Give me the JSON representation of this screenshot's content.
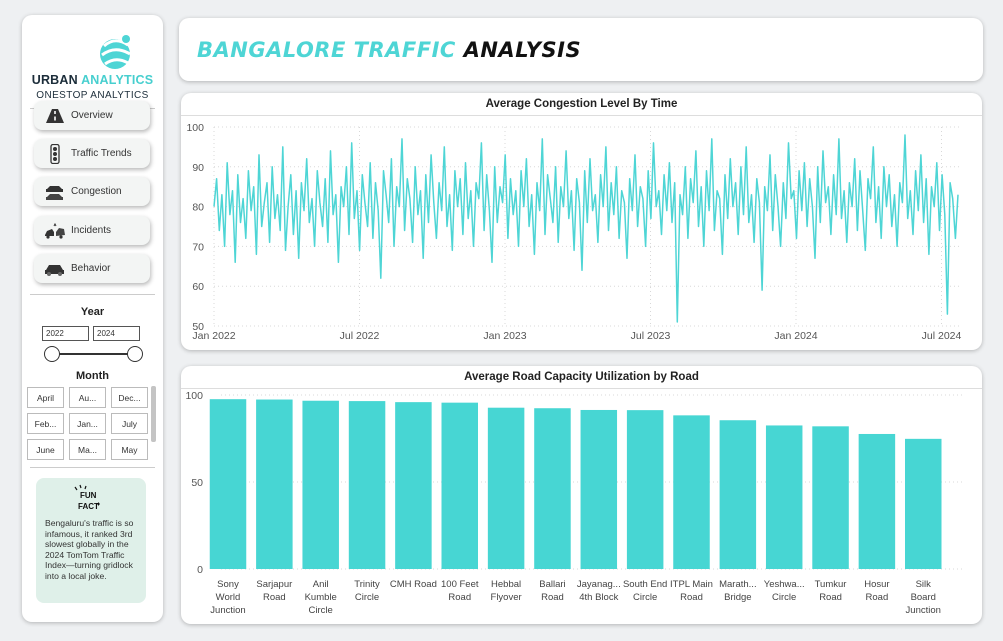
{
  "sidebar": {
    "brand_part1": "URBAN ",
    "brand_part2": "ANALYTICS",
    "brand_sub": "ONESTOP ANALYTICS",
    "nav": [
      {
        "label": "Overview",
        "icon": "road-icon"
      },
      {
        "label": "Traffic Trends",
        "icon": "traffic-light-icon"
      },
      {
        "label": "Congestion",
        "icon": "car-stack-icon"
      },
      {
        "label": "Incidents",
        "icon": "car-crash-icon"
      },
      {
        "label": "Behavior",
        "icon": "car-behavior-icon"
      }
    ],
    "year_filter": {
      "title": "Year",
      "from": "2022",
      "to": "2024"
    },
    "month_filter": {
      "title": "Month",
      "cells": [
        "April",
        "Au...",
        "Dec...",
        "Feb...",
        "Jan...",
        "July",
        "June",
        "Ma...",
        "May"
      ]
    },
    "fun_fact": {
      "icon_line1": "FUN",
      "icon_line2": "FACT",
      "text": "Bengaluru's traffic is so infamous, it ranked 3rd slowest globally in the 2024 TomTom Traffic Index—turning gridlock into a local joke."
    }
  },
  "header": {
    "title_part1": "BANGALORE TRAFFIC ",
    "title_part2": "ANALYSIS"
  },
  "colors": {
    "accent": "#4ed5d5",
    "bar": "#47d6d3",
    "dark": "#1c2d3a",
    "fun_bg": "#dff0e9"
  },
  "chart_data": [
    {
      "type": "line",
      "title": "Average Congestion Level By Time",
      "xlabel": "",
      "ylabel": "",
      "x_tick_labels": [
        "Jan 2022",
        "Jul 2022",
        "Jan 2023",
        "Jul 2023",
        "Jan 2024",
        "Jul 2024"
      ],
      "y_ticks": [
        50,
        60,
        70,
        80,
        90,
        100
      ],
      "ylim": [
        50,
        100
      ],
      "x_range": [
        "2022-01-01",
        "2024-08-09"
      ],
      "grid": true,
      "series": [
        {
          "values": [
            80,
            87,
            74,
            83,
            70,
            91,
            78,
            84,
            66,
            88,
            76,
            82,
            72,
            89,
            79,
            85,
            68,
            93,
            75,
            81,
            86,
            71,
            90,
            77,
            83,
            74,
            95,
            69,
            80,
            88,
            73,
            84,
            67,
            86,
            79,
            92,
            76,
            82,
            70,
            89,
            81,
            75,
            87,
            71,
            94,
            78,
            83,
            66,
            85,
            80,
            90,
            73,
            96,
            77,
            84,
            69,
            88,
            81,
            75,
            91,
            72,
            86,
            79,
            62,
            89,
            83,
            76,
            92,
            70,
            85,
            80,
            97,
            74,
            87,
            82,
            71,
            90,
            78,
            84,
            67,
            88,
            76,
            93,
            81,
            72,
            86,
            79,
            95,
            75,
            83,
            69,
            89,
            80,
            87,
            73,
            91,
            77,
            84,
            70,
            86,
            82,
            96,
            74,
            88,
            79,
            66,
            90,
            76,
            85,
            81,
            93,
            72,
            87,
            78,
            84,
            70,
            89,
            80,
            92,
            75,
            83,
            68,
            86,
            79,
            97,
            73,
            88,
            82,
            76,
            90,
            71,
            85,
            80,
            94,
            77,
            84,
            69,
            87,
            81,
            64,
            89,
            76,
            92,
            79,
            83,
            71,
            88,
            80,
            95,
            74,
            86,
            78,
            90,
            72,
            84,
            81,
            67,
            87,
            79,
            93,
            75,
            85,
            82,
            70,
            89,
            77,
            96,
            80,
            84,
            73,
            88,
            79,
            91,
            76,
            86,
            51,
            83,
            78,
            90,
            72,
            87,
            81,
            94,
            75,
            85,
            70,
            89,
            79,
            97,
            74,
            84,
            82,
            68,
            88,
            77,
            92,
            80,
            86,
            73,
            90,
            78,
            95,
            76,
            83,
            71,
            87,
            81,
            59,
            85,
            79,
            93,
            74,
            88,
            80,
            70,
            86,
            77,
            96,
            82,
            84,
            72,
            89,
            79,
            91,
            75,
            87,
            80,
            67,
            90,
            76,
            94,
            81,
            85,
            73,
            88,
            78,
            97,
            77,
            84,
            71,
            86,
            80,
            92,
            74,
            89,
            79,
            69,
            87,
            82,
            95,
            76,
            85,
            72,
            90,
            80,
            88,
            75,
            83,
            70,
            86,
            81,
            98,
            77,
            84,
            73,
            89,
            79,
            93,
            76,
            87,
            68,
            85,
            80,
            91,
            74,
            88,
            78,
            53,
            86,
            82,
            72,
            83
          ]
        }
      ]
    },
    {
      "type": "bar",
      "title": "Average Road Capacity Utilization by Road",
      "xlabel": "",
      "ylabel": "",
      "ylim": [
        0,
        100
      ],
      "y_ticks": [
        0,
        50,
        100
      ],
      "categories": [
        "Sony World Junction",
        "Sarjapur Road",
        "Anil Kumble Circle",
        "Trinity Circle",
        "CMH Road",
        "100 Feet Road",
        "Hebbal Flyover",
        "Ballari Road",
        "Jayanag... 4th Block",
        "South End Circle",
        "ITPL Main Road",
        "Marath... Bridge",
        "Yeshwa... Circle",
        "Tumkur Road",
        "Hosur Road",
        "Silk Board Junction"
      ],
      "values": [
        97.6,
        97.4,
        96.7,
        96.5,
        95.9,
        95.6,
        92.7,
        92.4,
        91.4,
        91.3,
        88.3,
        85.5,
        82.5,
        82.0,
        77.6,
        74.8
      ]
    }
  ]
}
